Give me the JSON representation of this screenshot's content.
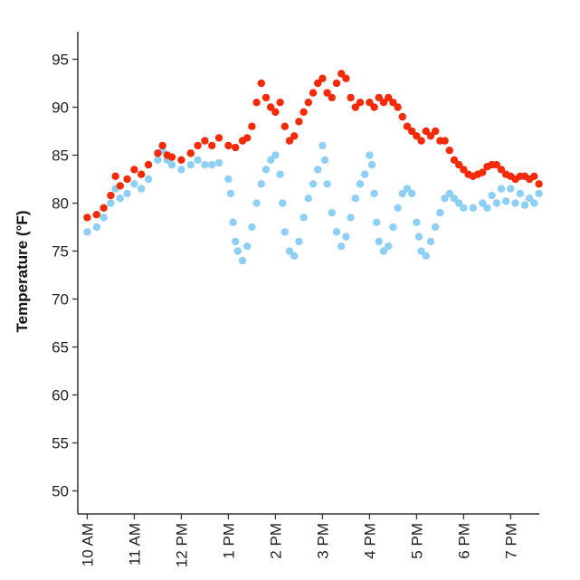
{
  "chart_data": {
    "type": "scatter",
    "title": "",
    "xlabel": "",
    "ylabel": "Temperature (°F)",
    "xlim": [
      10.0,
      19.8
    ],
    "ylim": [
      47.5,
      98
    ],
    "grid": false,
    "y_ticks": [
      50,
      55,
      60,
      65,
      70,
      75,
      80,
      85,
      90,
      95
    ],
    "x_ticks": [
      {
        "value": 10,
        "label": "10 AM"
      },
      {
        "value": 11,
        "label": "11 AM"
      },
      {
        "value": 12,
        "label": "12 PM"
      },
      {
        "value": 13,
        "label": "1 PM"
      },
      {
        "value": 14,
        "label": "2 PM"
      },
      {
        "value": 15,
        "label": "3 PM"
      },
      {
        "value": 16,
        "label": "4 PM"
      },
      {
        "value": 17,
        "label": "5 PM"
      },
      {
        "value": 18,
        "label": "6 PM"
      },
      {
        "value": 19,
        "label": "7 PM"
      }
    ],
    "series": [
      {
        "color": "#f42a08",
        "points": [
          [
            10.0,
            78.5
          ],
          [
            10.2,
            78.8
          ],
          [
            10.35,
            79.5
          ],
          [
            10.5,
            80.8
          ],
          [
            10.6,
            82.8
          ],
          [
            10.7,
            81.8
          ],
          [
            10.85,
            82.5
          ],
          [
            11.0,
            83.5
          ],
          [
            11.15,
            83.0
          ],
          [
            11.3,
            84.0
          ],
          [
            11.5,
            85.2
          ],
          [
            11.6,
            86.0
          ],
          [
            11.7,
            85.0
          ],
          [
            11.8,
            84.8
          ],
          [
            12.0,
            84.5
          ],
          [
            12.2,
            85.2
          ],
          [
            12.35,
            86.0
          ],
          [
            12.5,
            86.5
          ],
          [
            12.65,
            86.0
          ],
          [
            12.8,
            86.8
          ],
          [
            13.0,
            86.0
          ],
          [
            13.15,
            85.8
          ],
          [
            13.3,
            86.5
          ],
          [
            13.4,
            86.8
          ],
          [
            13.5,
            88.0
          ],
          [
            13.6,
            90.5
          ],
          [
            13.7,
            92.5
          ],
          [
            13.8,
            91.0
          ],
          [
            13.9,
            90.0
          ],
          [
            14.0,
            89.5
          ],
          [
            14.1,
            90.5
          ],
          [
            14.2,
            88.0
          ],
          [
            14.3,
            86.5
          ],
          [
            14.4,
            87.0
          ],
          [
            14.5,
            88.5
          ],
          [
            14.6,
            89.5
          ],
          [
            14.7,
            90.5
          ],
          [
            14.8,
            91.5
          ],
          [
            14.9,
            92.5
          ],
          [
            15.0,
            93.0
          ],
          [
            15.1,
            91.5
          ],
          [
            15.2,
            91.0
          ],
          [
            15.3,
            92.5
          ],
          [
            15.4,
            93.5
          ],
          [
            15.5,
            93.0
          ],
          [
            15.6,
            91.0
          ],
          [
            15.7,
            90.0
          ],
          [
            15.8,
            90.5
          ],
          [
            16.0,
            90.5
          ],
          [
            16.1,
            90.0
          ],
          [
            16.2,
            91.0
          ],
          [
            16.3,
            90.5
          ],
          [
            16.4,
            91.0
          ],
          [
            16.5,
            90.5
          ],
          [
            16.6,
            90.0
          ],
          [
            16.7,
            89.0
          ],
          [
            16.8,
            88.0
          ],
          [
            16.9,
            87.5
          ],
          [
            17.0,
            87.0
          ],
          [
            17.1,
            86.5
          ],
          [
            17.2,
            87.5
          ],
          [
            17.3,
            87.0
          ],
          [
            17.4,
            87.5
          ],
          [
            17.5,
            86.5
          ],
          [
            17.6,
            86.5
          ],
          [
            17.7,
            85.5
          ],
          [
            17.8,
            84.5
          ],
          [
            17.9,
            84.0
          ],
          [
            18.0,
            83.5
          ],
          [
            18.1,
            83.0
          ],
          [
            18.2,
            82.8
          ],
          [
            18.3,
            83.0
          ],
          [
            18.4,
            83.2
          ],
          [
            18.5,
            83.8
          ],
          [
            18.6,
            84.0
          ],
          [
            18.7,
            84.0
          ],
          [
            18.8,
            83.5
          ],
          [
            18.9,
            83.0
          ],
          [
            19.0,
            82.8
          ],
          [
            19.1,
            82.5
          ],
          [
            19.2,
            82.8
          ],
          [
            19.3,
            82.8
          ],
          [
            19.4,
            82.5
          ],
          [
            19.5,
            82.8
          ],
          [
            19.6,
            82.0
          ],
          [
            19.7,
            80.5
          ],
          [
            19.8,
            80.0
          ]
        ]
      },
      {
        "color": "#8ecff5",
        "points": [
          [
            10.0,
            77.0
          ],
          [
            10.2,
            77.5
          ],
          [
            10.35,
            78.5
          ],
          [
            10.5,
            80.0
          ],
          [
            10.6,
            81.5
          ],
          [
            10.7,
            80.5
          ],
          [
            10.85,
            81.0
          ],
          [
            11.0,
            82.0
          ],
          [
            11.15,
            81.5
          ],
          [
            11.3,
            82.5
          ],
          [
            11.5,
            84.5
          ],
          [
            11.6,
            85.5
          ],
          [
            11.7,
            84.5
          ],
          [
            11.8,
            84.0
          ],
          [
            12.0,
            83.5
          ],
          [
            12.2,
            84.0
          ],
          [
            12.35,
            84.5
          ],
          [
            12.5,
            84.0
          ],
          [
            12.65,
            84.0
          ],
          [
            12.8,
            84.2
          ],
          [
            13.0,
            82.5
          ],
          [
            13.05,
            81.0
          ],
          [
            13.1,
            78.0
          ],
          [
            13.15,
            76.0
          ],
          [
            13.2,
            75.0
          ],
          [
            13.3,
            74.0
          ],
          [
            13.4,
            75.5
          ],
          [
            13.5,
            77.5
          ],
          [
            13.6,
            80.0
          ],
          [
            13.7,
            82.0
          ],
          [
            13.8,
            83.5
          ],
          [
            13.9,
            84.5
          ],
          [
            14.0,
            85.0
          ],
          [
            14.1,
            83.0
          ],
          [
            14.15,
            80.0
          ],
          [
            14.2,
            77.0
          ],
          [
            14.3,
            75.0
          ],
          [
            14.4,
            74.5
          ],
          [
            14.5,
            76.0
          ],
          [
            14.6,
            78.5
          ],
          [
            14.7,
            80.5
          ],
          [
            14.8,
            82.0
          ],
          [
            14.9,
            83.5
          ],
          [
            15.0,
            86.0
          ],
          [
            15.05,
            84.5
          ],
          [
            15.1,
            82.0
          ],
          [
            15.2,
            79.0
          ],
          [
            15.3,
            77.0
          ],
          [
            15.4,
            75.5
          ],
          [
            15.5,
            76.5
          ],
          [
            15.6,
            78.5
          ],
          [
            15.7,
            80.5
          ],
          [
            15.8,
            82.0
          ],
          [
            15.9,
            83.0
          ],
          [
            16.0,
            85.0
          ],
          [
            16.05,
            84.0
          ],
          [
            16.1,
            81.0
          ],
          [
            16.15,
            78.0
          ],
          [
            16.2,
            76.0
          ],
          [
            16.3,
            75.0
          ],
          [
            16.4,
            75.5
          ],
          [
            16.5,
            77.5
          ],
          [
            16.6,
            79.5
          ],
          [
            16.7,
            81.0
          ],
          [
            16.8,
            81.5
          ],
          [
            16.9,
            81.0
          ],
          [
            17.0,
            78.0
          ],
          [
            17.05,
            76.5
          ],
          [
            17.1,
            75.0
          ],
          [
            17.2,
            74.5
          ],
          [
            17.3,
            76.0
          ],
          [
            17.4,
            77.5
          ],
          [
            17.5,
            79.0
          ],
          [
            17.6,
            80.5
          ],
          [
            17.7,
            81.0
          ],
          [
            17.8,
            80.5
          ],
          [
            17.9,
            80.0
          ],
          [
            18.0,
            79.5
          ],
          [
            18.2,
            79.5
          ],
          [
            18.4,
            80.0
          ],
          [
            18.6,
            80.8
          ],
          [
            18.8,
            81.5
          ],
          [
            19.0,
            81.5
          ],
          [
            19.2,
            81.0
          ],
          [
            19.4,
            80.5
          ],
          [
            19.6,
            81.0
          ],
          [
            19.8,
            80.0
          ],
          [
            18.5,
            79.5
          ],
          [
            18.7,
            80.0
          ],
          [
            18.9,
            80.2
          ],
          [
            19.1,
            80.0
          ],
          [
            19.3,
            79.8
          ],
          [
            19.5,
            80.0
          ],
          [
            19.7,
            79.0
          ]
        ]
      }
    ]
  }
}
